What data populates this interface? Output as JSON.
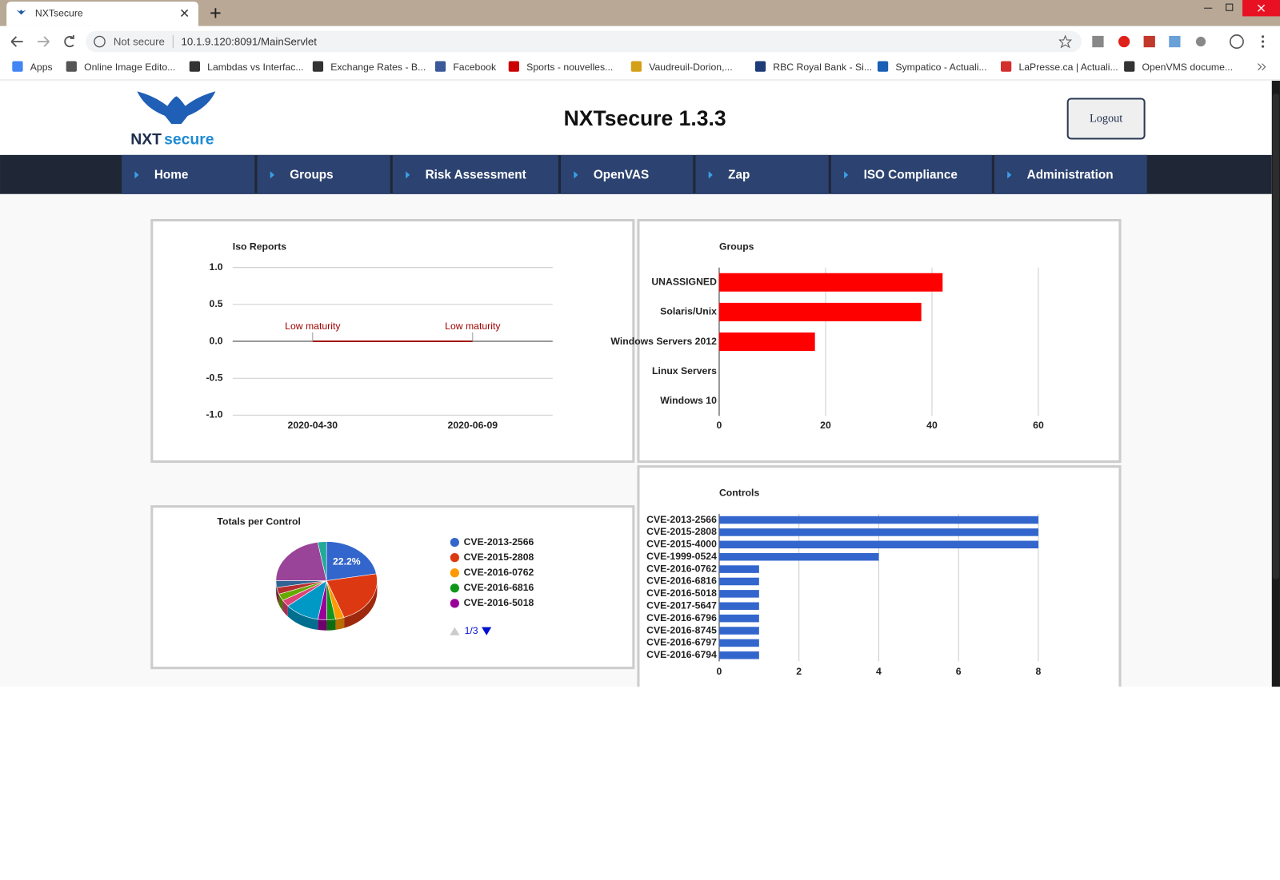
{
  "browser": {
    "tab_title": "NXTsecure",
    "security": "Not secure",
    "url": "10.1.9.120:8091/MainServlet",
    "bookmarks": [
      "Apps",
      "Online Image Edito...",
      "Lambdas vs Interfac...",
      "Exchange Rates - B...",
      "Facebook",
      "Sports - nouvelles...",
      "Vaudreuil-Dorion,...",
      "RBC Royal Bank - Si...",
      "Sympatico - Actuali...",
      "LaPresse.ca | Actuali...",
      "OpenVMS docume..."
    ]
  },
  "header": {
    "logo_nxt": "NXT",
    "logo_secure": "secure",
    "title": "NXTsecure 1.3.3",
    "logout": "Logout"
  },
  "nav": [
    "Home",
    "Groups",
    "Risk Assessment",
    "OpenVAS",
    "Zap",
    "ISO Compliance",
    "Administration"
  ],
  "chart_data": [
    {
      "type": "line",
      "title": "Iso Reports",
      "categories": [
        "2020-04-30",
        "2020-06-09"
      ],
      "values": [
        0,
        0
      ],
      "annotations": [
        "Low maturity",
        "Low maturity"
      ],
      "color": "#a31515",
      "ylim": [
        -1,
        1
      ],
      "yticks": [
        {
          "value": -1,
          "label": "-1.0"
        },
        -0.5,
        {
          "value": 0,
          "label": "0.0"
        },
        0.5,
        {
          "value": 1,
          "label": "1.0"
        }
      ],
      "grid": true
    },
    {
      "type": "bar",
      "orientation": "horizontal",
      "title": "Groups",
      "categories": [
        "UNASSIGNED",
        "Solaris/Unix",
        "Windows Servers 2012",
        "Linux Servers",
        "Windows 10"
      ],
      "values": [
        42,
        38,
        18,
        0,
        0
      ],
      "color": "#ff0000",
      "xlim": [
        0,
        60
      ],
      "xticks": [
        0,
        20,
        40,
        60
      ],
      "grid": true
    },
    {
      "type": "pie",
      "title": "Totals per Control",
      "categories": [
        "CVE-2013-2566",
        "CVE-2015-2808",
        "CVE-2016-0762",
        "CVE-2016-6816",
        "CVE-2016-5018",
        null,
        null,
        null,
        null,
        null,
        null,
        null
      ],
      "values": [
        22.2,
        22.2,
        2.8,
        2.8,
        2.8,
        11.1,
        2.8,
        2.8,
        2.8,
        2.8,
        22.2,
        2.8
      ],
      "value_labels": [
        "22.2%",
        null,
        null,
        null,
        null,
        null,
        null,
        null,
        null,
        null,
        null,
        null
      ],
      "colors": [
        "#3366cc",
        "#dc3912",
        "#ff9900",
        "#109618",
        "#990099",
        "#0099c6",
        "#dd4477",
        "#66aa00",
        "#b82e2e",
        "#316395",
        "#994499",
        "#22aa99"
      ],
      "legend_page": "1/3"
    },
    {
      "type": "bar",
      "orientation": "horizontal",
      "title": "Controls",
      "categories": [
        "CVE-2013-2566",
        "CVE-2015-2808",
        "CVE-2015-4000",
        "CVE-1999-0524",
        "CVE-2016-0762",
        "CVE-2016-6816",
        "CVE-2016-5018",
        "CVE-2017-5647",
        "CVE-2016-6796",
        "CVE-2016-8745",
        "CVE-2016-6797",
        "CVE-2016-6794"
      ],
      "values": [
        8,
        8,
        8,
        4,
        1,
        1,
        1,
        1,
        1,
        1,
        1,
        1
      ],
      "color": "#3366cc",
      "xlim": [
        0,
        8
      ],
      "xticks": [
        0,
        2,
        4,
        6,
        8
      ],
      "grid": true
    }
  ]
}
